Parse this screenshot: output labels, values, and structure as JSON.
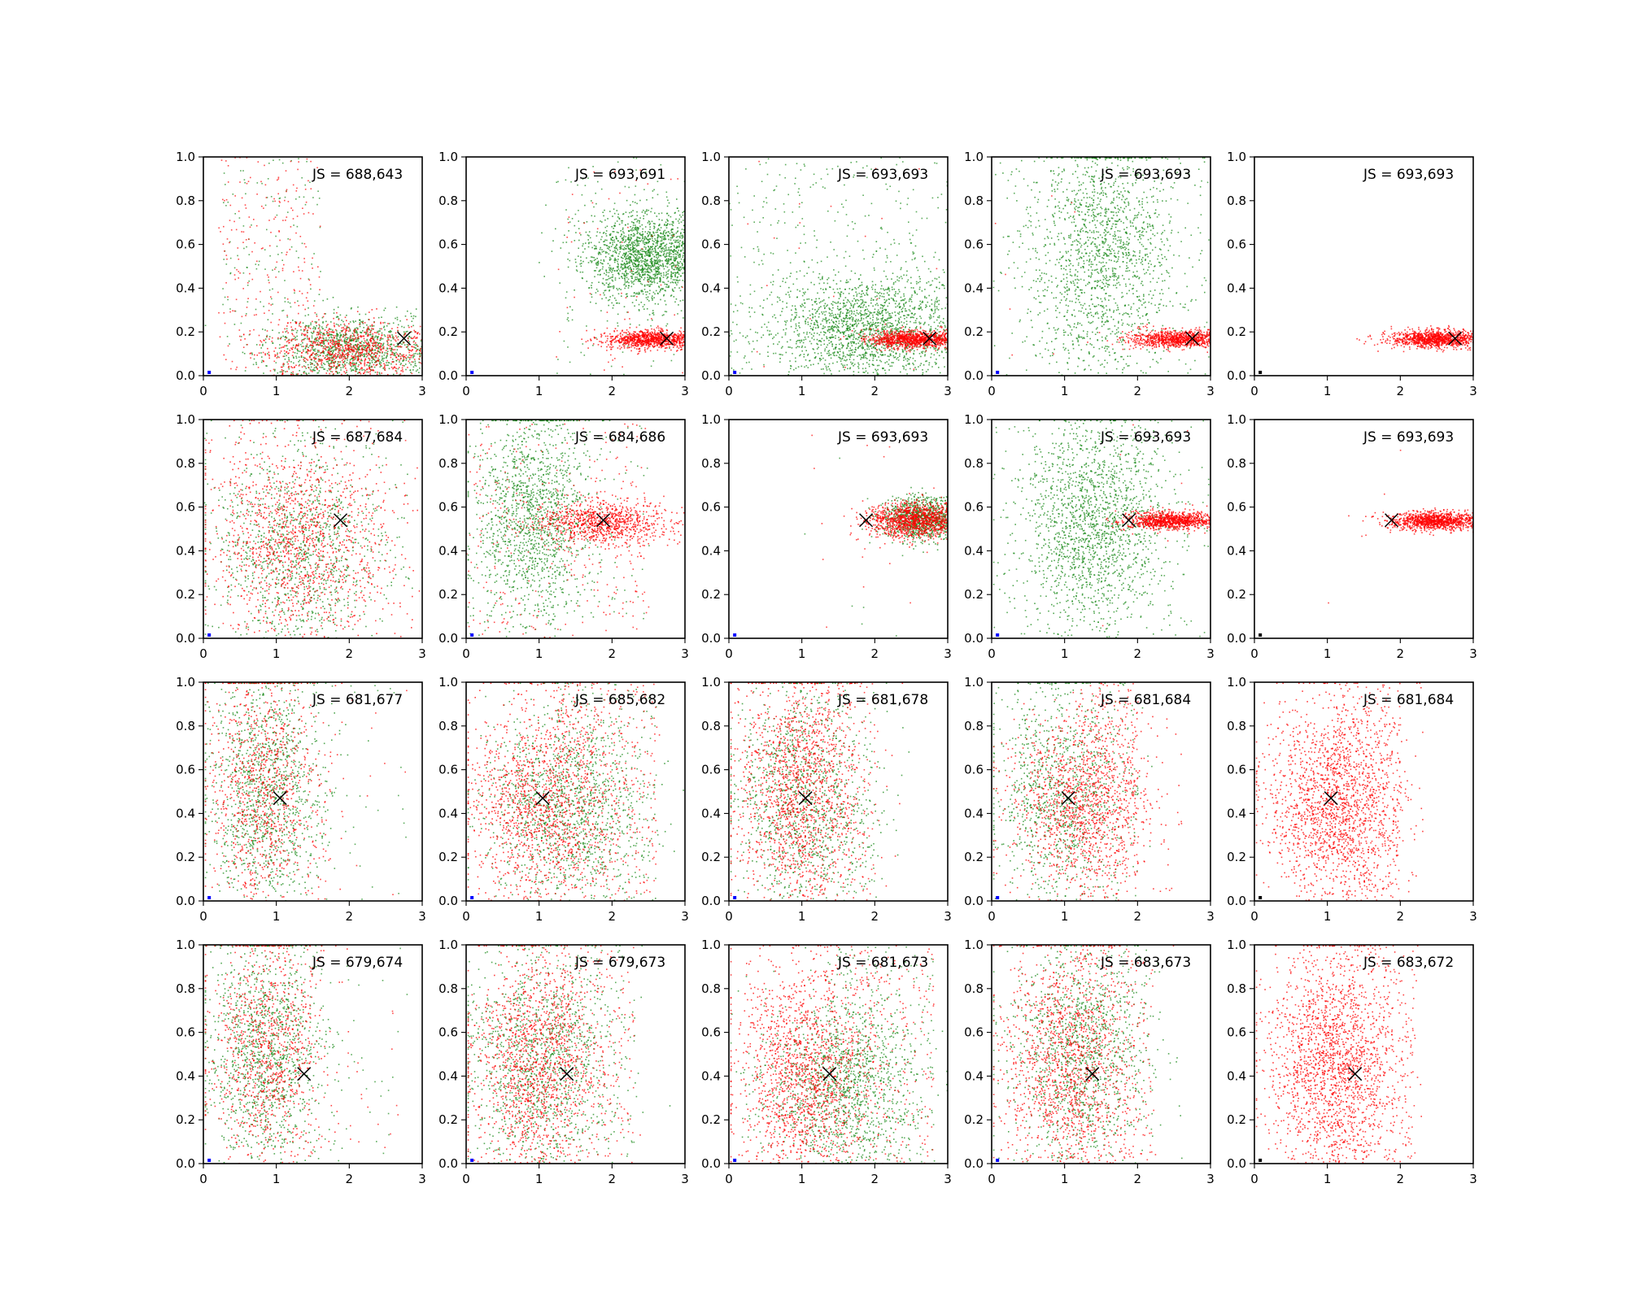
{
  "chart_data": {
    "type": "scatter",
    "layout": {
      "rows": 4,
      "cols": 5
    },
    "xlim": [
      0,
      3
    ],
    "ylim": [
      0,
      1
    ],
    "xticks": [
      0,
      1,
      2,
      3
    ],
    "yticks": [
      0.0,
      0.2,
      0.4,
      0.6,
      0.8,
      1.0
    ],
    "xtick_labels": [
      "0",
      "1",
      "2",
      "3"
    ],
    "ytick_labels": [
      "0.0",
      "0.2",
      "0.4",
      "0.6",
      "0.8",
      "1.0"
    ],
    "series_colors": {
      "red": "#ff0000",
      "green": "#1a8a1a",
      "origin": "#0000ff",
      "origin_last_col": "#000000",
      "marker": "#000000"
    },
    "rows": [
      {
        "marker": [
          2.75,
          0.17
        ],
        "panels": [
          {
            "js": "JS = 688,643",
            "red": {
              "n": 900,
              "cx": 2.0,
              "sx": 0.55,
              "cy": 0.12,
              "sy": 0.07,
              "x_max": 3.0
            },
            "green": {
              "n": 1100,
              "cx": 2.0,
              "sx": 0.55,
              "cy": 0.12,
              "sy": 0.08,
              "x_max": 3.0
            },
            "noise": {
              "red": 250,
              "green": 150,
              "x_range": [
                0.2,
                1.6
              ]
            }
          },
          {
            "js": "JS = 693,691",
            "red": {
              "n": 900,
              "cx": 2.5,
              "sx": 0.3,
              "cy": 0.17,
              "sy": 0.02,
              "x_max": 3.0
            },
            "green": {
              "n": 1600,
              "cx": 2.4,
              "sx": 0.4,
              "cy": 0.55,
              "sy": 0.1,
              "x_max": 3.0
            },
            "noise": {
              "red": 60,
              "green": 120,
              "x_range": [
                1.2,
                3.0
              ]
            }
          },
          {
            "js": "JS = 693,693",
            "red": {
              "n": 1000,
              "cx": 2.5,
              "sx": 0.3,
              "cy": 0.17,
              "sy": 0.02,
              "x_max": 3.0
            },
            "green": {
              "n": 1700,
              "cx": 1.9,
              "sx": 0.6,
              "cy": 0.22,
              "sy": 0.12,
              "x_max": 3.0
            },
            "noise": {
              "red": 20,
              "green": 400,
              "x_range": [
                0.0,
                3.0
              ]
            }
          },
          {
            "js": "JS = 693,693",
            "red": {
              "n": 900,
              "cx": 2.5,
              "sx": 0.3,
              "cy": 0.17,
              "sy": 0.02,
              "x_max": 3.0
            },
            "green": {
              "n": 1500,
              "cx": 1.5,
              "sx": 0.5,
              "cy": 0.55,
              "sy": 0.28,
              "x_max": 3.0
            },
            "noise": {
              "red": 10,
              "green": 200,
              "x_range": [
                0.0,
                3.0
              ]
            }
          },
          {
            "js": "JS = 693,693",
            "red": {
              "n": 1100,
              "cx": 2.45,
              "sx": 0.3,
              "cy": 0.17,
              "sy": 0.02,
              "x_max": 3.0
            },
            "green": {
              "n": 0,
              "cx": 0,
              "sx": 0,
              "cy": 0,
              "sy": 0,
              "x_max": 3.0
            },
            "noise": {
              "red": 0,
              "green": 0,
              "x_range": [
                0.0,
                3.0
              ]
            }
          }
        ]
      },
      {
        "marker": [
          1.88,
          0.54
        ],
        "panels": [
          {
            "js": "JS = 687,684",
            "red": {
              "n": 1300,
              "cx": 1.3,
              "sx": 0.65,
              "cy": 0.45,
              "sy": 0.24,
              "x_max": 3.0
            },
            "green": {
              "n": 1100,
              "cx": 1.3,
              "sx": 0.6,
              "cy": 0.42,
              "sy": 0.24,
              "x_max": 3.0
            },
            "noise": {
              "red": 100,
              "green": 60,
              "x_range": [
                0.0,
                2.8
              ]
            }
          },
          {
            "js": "JS = 684,686",
            "red": {
              "n": 900,
              "cx": 1.9,
              "sx": 0.45,
              "cy": 0.53,
              "sy": 0.05,
              "x_max": 3.0
            },
            "green": {
              "n": 1400,
              "cx": 0.9,
              "sx": 0.4,
              "cy": 0.55,
              "sy": 0.25,
              "x_max": 3.0
            },
            "noise": {
              "red": 300,
              "green": 150,
              "x_range": [
                0.0,
                2.5
              ]
            }
          },
          {
            "js": "JS = 693,693",
            "red": {
              "n": 1100,
              "cx": 2.5,
              "sx": 0.3,
              "cy": 0.54,
              "sy": 0.04,
              "x_max": 3.0
            },
            "green": {
              "n": 900,
              "cx": 2.6,
              "sx": 0.25,
              "cy": 0.55,
              "sy": 0.05,
              "x_max": 3.0
            },
            "noise": {
              "red": 20,
              "green": 10,
              "x_range": [
                1.0,
                3.0
              ]
            }
          },
          {
            "js": "JS = 693,693",
            "red": {
              "n": 1000,
              "cx": 2.45,
              "sx": 0.3,
              "cy": 0.54,
              "sy": 0.02,
              "x_max": 3.0
            },
            "green": {
              "n": 1700,
              "cx": 1.4,
              "sx": 0.5,
              "cy": 0.52,
              "sy": 0.24,
              "x_max": 3.0
            },
            "noise": {
              "red": 5,
              "green": 150,
              "x_range": [
                0.0,
                3.0
              ]
            }
          },
          {
            "js": "JS = 693,693",
            "red": {
              "n": 1100,
              "cx": 2.45,
              "sx": 0.3,
              "cy": 0.54,
              "sy": 0.02,
              "x_max": 3.0
            },
            "green": {
              "n": 0,
              "cx": 0,
              "sx": 0,
              "cy": 0,
              "sy": 0,
              "x_max": 3.0
            },
            "noise": {
              "red": 5,
              "green": 0,
              "x_range": [
                1.0,
                2.0
              ]
            }
          }
        ]
      },
      {
        "marker": [
          1.05,
          0.47
        ],
        "panels": [
          {
            "js": "JS = 681,677",
            "red": {
              "n": 1000,
              "cx": 0.8,
              "sx": 0.4,
              "cy": 0.5,
              "sy": 0.28,
              "x_max": 2.6
            },
            "green": {
              "n": 1200,
              "cx": 0.85,
              "sx": 0.4,
              "cy": 0.5,
              "sy": 0.28,
              "x_max": 2.6
            },
            "noise": {
              "red": 30,
              "green": 50,
              "x_range": [
                0.0,
                2.8
              ]
            }
          },
          {
            "js": "JS = 685,682",
            "red": {
              "n": 1300,
              "cx": 1.0,
              "sx": 0.5,
              "cy": 0.45,
              "sy": 0.25,
              "x_max": 3.0
            },
            "green": {
              "n": 1200,
              "cx": 1.3,
              "sx": 0.55,
              "cy": 0.45,
              "sy": 0.22,
              "x_max": 3.0
            },
            "noise": {
              "red": 400,
              "green": 200,
              "x_range": [
                1.2,
                2.6
              ]
            }
          },
          {
            "js": "JS = 681,678",
            "red": {
              "n": 1400,
              "cx": 0.95,
              "sx": 0.45,
              "cy": 0.5,
              "sy": 0.27,
              "x_max": 2.6
            },
            "green": {
              "n": 1100,
              "cx": 1.0,
              "sx": 0.5,
              "cy": 0.45,
              "sy": 0.25,
              "x_max": 2.6
            },
            "noise": {
              "red": 200,
              "green": 80,
              "x_range": [
                0.8,
                2.0
              ]
            }
          },
          {
            "js": "JS = 681,684",
            "red": {
              "n": 1200,
              "cx": 1.2,
              "sx": 0.5,
              "cy": 0.45,
              "sy": 0.2,
              "x_max": 2.6
            },
            "green": {
              "n": 1000,
              "cx": 0.9,
              "sx": 0.45,
              "cy": 0.5,
              "sy": 0.27,
              "x_max": 2.6
            },
            "noise": {
              "red": 300,
              "green": 80,
              "x_range": [
                1.2,
                2.0
              ]
            }
          },
          {
            "js": "JS = 681,684",
            "red": {
              "n": 1700,
              "cx": 1.05,
              "sx": 0.45,
              "cy": 0.45,
              "sy": 0.22,
              "x_max": 2.3
            },
            "green": {
              "n": 0,
              "cx": 0,
              "sx": 0,
              "cy": 0,
              "sy": 0,
              "x_max": 2.3
            },
            "noise": {
              "red": 300,
              "green": 0,
              "x_range": [
                1.2,
                2.0
              ]
            }
          }
        ]
      },
      {
        "marker": [
          1.38,
          0.41
        ],
        "panels": [
          {
            "js": "JS = 679,674",
            "red": {
              "n": 1000,
              "cx": 0.85,
              "sx": 0.4,
              "cy": 0.5,
              "sy": 0.28,
              "x_max": 2.6
            },
            "green": {
              "n": 1200,
              "cx": 0.85,
              "sx": 0.4,
              "cy": 0.5,
              "sy": 0.28,
              "x_max": 2.6
            },
            "noise": {
              "red": 30,
              "green": 40,
              "x_range": [
                1.2,
                2.8
              ]
            }
          },
          {
            "js": "JS = 679,673",
            "red": {
              "n": 1400,
              "cx": 0.95,
              "sx": 0.45,
              "cy": 0.45,
              "sy": 0.27,
              "x_max": 2.8
            },
            "green": {
              "n": 1200,
              "cx": 1.0,
              "sx": 0.5,
              "cy": 0.45,
              "sy": 0.27,
              "x_max": 2.8
            },
            "noise": {
              "red": 200,
              "green": 120,
              "x_range": [
                1.2,
                2.3
              ]
            }
          },
          {
            "js": "JS = 681,673",
            "red": {
              "n": 1500,
              "cx": 1.0,
              "sx": 0.45,
              "cy": 0.4,
              "sy": 0.25,
              "x_max": 2.7
            },
            "green": {
              "n": 1300,
              "cx": 1.5,
              "sx": 0.55,
              "cy": 0.35,
              "sy": 0.2,
              "x_max": 3.0
            },
            "noise": {
              "red": 300,
              "green": 250,
              "x_range": [
                1.3,
                2.8
              ]
            }
          },
          {
            "js": "JS = 683,673",
            "red": {
              "n": 1300,
              "cx": 1.0,
              "sx": 0.45,
              "cy": 0.45,
              "sy": 0.27,
              "x_max": 2.5
            },
            "green": {
              "n": 1200,
              "cx": 1.2,
              "sx": 0.5,
              "cy": 0.5,
              "sy": 0.25,
              "x_max": 2.6
            },
            "noise": {
              "red": 250,
              "green": 60,
              "x_range": [
                1.0,
                2.2
              ]
            }
          },
          {
            "js": "JS = 683,672",
            "red": {
              "n": 1800,
              "cx": 1.05,
              "sx": 0.45,
              "cy": 0.45,
              "sy": 0.25,
              "x_max": 2.3
            },
            "green": {
              "n": 0,
              "cx": 0,
              "sx": 0,
              "cy": 0,
              "sy": 0,
              "x_max": 2.3
            },
            "noise": {
              "red": 300,
              "green": 0,
              "x_range": [
                1.0,
                2.2
              ]
            }
          }
        ]
      }
    ]
  }
}
